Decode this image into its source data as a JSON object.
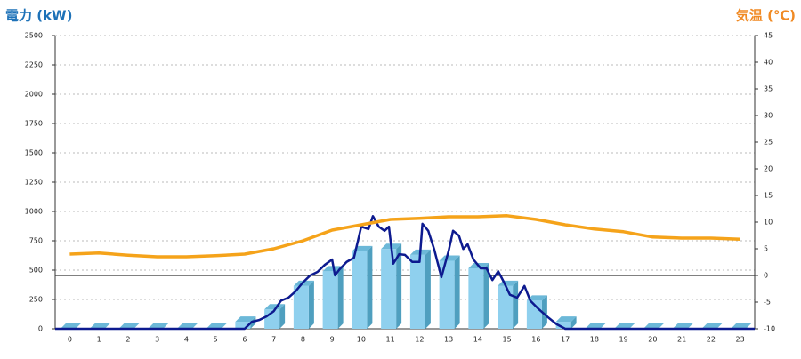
{
  "chart_data": {
    "type": "bar",
    "title": "電力 (kW)",
    "y2_title": "気温 (℃)",
    "categories": [
      "0",
      "1",
      "2",
      "3",
      "4",
      "5",
      "6",
      "7",
      "8",
      "9",
      "10",
      "11",
      "12",
      "13",
      "14",
      "15",
      "16",
      "17",
      "18",
      "19",
      "20",
      "21",
      "22",
      "23"
    ],
    "xlim": [
      -0.5,
      23.5
    ],
    "ylim": [
      0,
      2500
    ],
    "yticks": [
      0,
      250,
      500,
      750,
      1000,
      1250,
      1500,
      1750,
      2000,
      2250,
      2500
    ],
    "y2lim": [
      -10,
      45
    ],
    "y2ticks": [
      -10,
      -5,
      0,
      5,
      10,
      15,
      20,
      25,
      30,
      35,
      40,
      45
    ],
    "grid": true,
    "y2_zero_line": true,
    "series": [
      {
        "type": "bar",
        "color": "#8fd0ee",
        "values": [
          0,
          0,
          0,
          0,
          0,
          0,
          60,
          165,
          365,
          490,
          660,
          680,
          630,
          580,
          515,
          365,
          240,
          60,
          0,
          0,
          0,
          0,
          0,
          0
        ]
      },
      {
        "type": "line",
        "color": "#0d1a8f",
        "x": [
          -0.5,
          6.0,
          6.25,
          6.5,
          6.75,
          7.0,
          7.25,
          7.5,
          7.75,
          8.0,
          8.25,
          8.5,
          8.75,
          9.0,
          9.1,
          9.25,
          9.5,
          9.75,
          10.0,
          10.25,
          10.4,
          10.6,
          10.8,
          10.95,
          11.1,
          11.3,
          11.5,
          11.75,
          12.0,
          12.1,
          12.3,
          12.5,
          12.75,
          13.0,
          13.15,
          13.35,
          13.5,
          13.65,
          13.85,
          14.1,
          14.3,
          14.5,
          14.7,
          14.9,
          15.1,
          15.35,
          15.6,
          15.8,
          16.1,
          16.4,
          16.7,
          17.0,
          23.5
        ],
        "values": [
          0,
          0,
          60,
          75,
          105,
          150,
          240,
          265,
          320,
          395,
          455,
          485,
          545,
          590,
          455,
          505,
          570,
          605,
          870,
          850,
          960,
          870,
          835,
          870,
          555,
          635,
          630,
          570,
          570,
          895,
          835,
          680,
          440,
          665,
          835,
          795,
          680,
          720,
          590,
          515,
          515,
          415,
          490,
          395,
          290,
          265,
          365,
          240,
          165,
          100,
          40,
          0,
          0
        ]
      },
      {
        "type": "line",
        "axis": "y2",
        "color": "#f5a31a",
        "values": [
          4.0,
          4.2,
          3.8,
          3.5,
          3.5,
          3.7,
          4.0,
          5.0,
          6.5,
          8.5,
          9.5,
          10.5,
          10.7,
          11.0,
          11.0,
          11.2,
          10.5,
          9.5,
          8.7,
          8.2,
          7.2,
          7.0,
          7.0,
          6.8
        ]
      }
    ]
  }
}
